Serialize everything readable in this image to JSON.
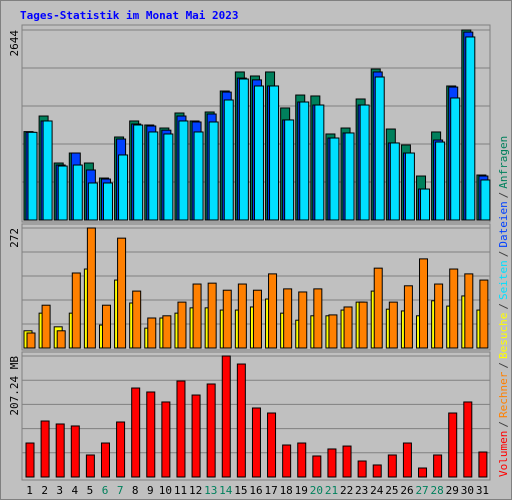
{
  "legend_separator": "/",
  "chart_data": [
    {
      "type": "bar",
      "title": "Tages-Statistik im Monat Mai 2023",
      "ylim": [
        0,
        2644
      ],
      "yticks": [
        2644
      ],
      "series": [
        {
          "name": "Anfragen",
          "color": "#00805c",
          "values": [
            1230,
            1447,
            793,
            932,
            793,
            584,
            1155,
            1378,
            1322,
            1280,
            1489,
            1378,
            1503,
            1795,
            2060,
            2004,
            2060,
            1559,
            1739,
            1726,
            1197,
            1280,
            1684,
            2101,
            1266,
            1044,
            612,
            1225,
            1865,
            2644,
            626
          ]
        },
        {
          "name": "Dateien",
          "color": "#0040ff",
          "values": [
            1220,
            1378,
            765,
            932,
            696,
            570,
            1127,
            1336,
            1308,
            1250,
            1447,
            1364,
            1475,
            1780,
            1975,
            1950,
            1865,
            1392,
            1642,
            1600,
            1141,
            1211,
            1600,
            2060,
            1072,
            932,
            431,
            1113,
            1850,
            2615,
            612
          ]
        },
        {
          "name": "Seiten",
          "color": "#00e0ff",
          "values": [
            1220,
            1378,
            751,
            765,
            515,
            515,
            905,
            1322,
            1225,
            1197,
            1378,
            1225,
            1364,
            1670,
            1962,
            1865,
            1865,
            1392,
            1642,
            1600,
            1141,
            1211,
            1600,
            1990,
            1072,
            932,
            431,
            1085,
            1698,
            2547,
            557
          ]
        }
      ]
    },
    {
      "type": "bar",
      "ylim": [
        0,
        272
      ],
      "yticks": [
        272
      ],
      "series": [
        {
          "name": "Besuche",
          "color": "#ffff00",
          "values": [
            39,
            79,
            48,
            79,
            179,
            52,
            154,
            102,
            45,
            68,
            79,
            91,
            91,
            86,
            86,
            93,
            111,
            79,
            63,
            73,
            73,
            86,
            104,
            129,
            88,
            84,
            73,
            107,
            95,
            118,
            86
          ]
        },
        {
          "name": "Rechner",
          "color": "#ff8000",
          "values": [
            34,
            97,
            39,
            170,
            272,
            97,
            249,
            129,
            68,
            73,
            104,
            145,
            147,
            131,
            145,
            131,
            168,
            134,
            127,
            134,
            75,
            93,
            104,
            181,
            104,
            141,
            202,
            145,
            179,
            168,
            154
          ]
        }
      ]
    },
    {
      "type": "bar",
      "ylim": [
        0,
        207.24
      ],
      "yticks": [
        {
          "value": 207.24,
          "label": "207.24 MB"
        }
      ],
      "categories": [
        "1",
        "2",
        "3",
        "4",
        "5",
        "6",
        "7",
        "8",
        "9",
        "10",
        "11",
        "12",
        "13",
        "14",
        "15",
        "16",
        "17",
        "18",
        "19",
        "20",
        "21",
        "22",
        "23",
        "24",
        "25",
        "26",
        "27",
        "28",
        "29",
        "30",
        "31"
      ],
      "category_colors": [
        "#000000",
        "#000000",
        "#000000",
        "#000000",
        "#000000",
        "#00805c",
        "#00805c",
        "#000000",
        "#000000",
        "#000000",
        "#000000",
        "#000000",
        "#00805c",
        "#00805c",
        "#000000",
        "#000000",
        "#000000",
        "#000000",
        "#000000",
        "#00805c",
        "#00805c",
        "#000000",
        "#000000",
        "#000000",
        "#000000",
        "#000000",
        "#00805c",
        "#00805c",
        "#000000",
        "#000000",
        "#000000"
      ],
      "series": [
        {
          "name": "Volumen",
          "color": "#ff0000",
          "values": [
            58.2,
            95.9,
            90.8,
            87.4,
            37.7,
            58.2,
            94.2,
            152.4,
            145.6,
            128.5,
            164.4,
            140.4,
            159.3,
            207.24,
            193.5,
            118.2,
            109.6,
            54.8,
            58.2,
            36,
            48,
            53,
            27.4,
            20.6,
            37.7,
            58.2,
            15.4,
            37.7,
            109.6,
            128.5,
            42.8
          ]
        }
      ]
    }
  ]
}
